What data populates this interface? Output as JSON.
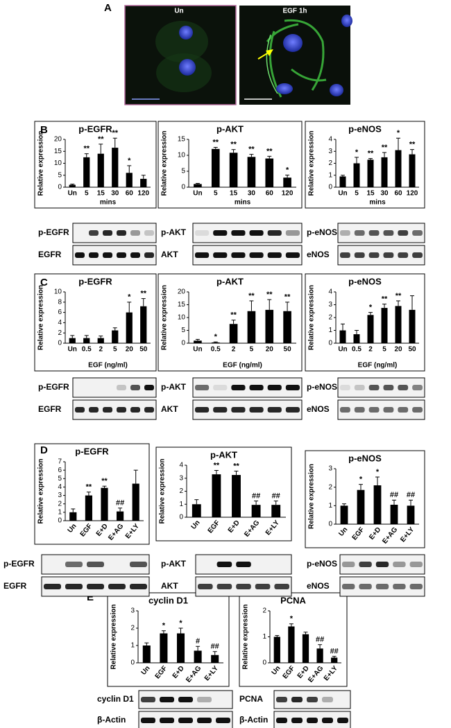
{
  "figure": {
    "panels": [
      "A",
      "B",
      "C",
      "D",
      "E"
    ],
    "image_labels": [
      "Un",
      "EGF 1h"
    ]
  },
  "chart_data": [
    {
      "type": "bar",
      "title": "p-EGFR",
      "categories": [
        "Un",
        "5",
        "15",
        "30",
        "60",
        "120"
      ],
      "values": [
        1,
        12.5,
        14,
        16.5,
        6,
        3.5
      ],
      "errors": [
        0.3,
        1.5,
        4,
        4,
        3,
        1.5
      ],
      "annotations": [
        null,
        "**",
        "**",
        "**",
        "*",
        null
      ],
      "ylim": [
        0,
        20
      ],
      "yticks": [
        0,
        5,
        10,
        15,
        20
      ],
      "ylabel": "Relative expression",
      "xlabel": "mins",
      "color": "#000000"
    },
    {
      "type": "bar",
      "title": "p-AKT",
      "categories": [
        "Un",
        "5",
        "15",
        "30",
        "60",
        "120"
      ],
      "values": [
        1,
        12,
        10.8,
        9.5,
        9,
        3
      ],
      "errors": [
        0.2,
        0.5,
        1,
        0.8,
        0.7,
        0.8
      ],
      "annotations": [
        null,
        "**",
        "**",
        "**",
        "**",
        "*"
      ],
      "ylim": [
        0,
        15
      ],
      "yticks": [
        0,
        5,
        10,
        15
      ],
      "ylabel": "Relative expression",
      "xlabel": "mins",
      "color": "#000000"
    },
    {
      "type": "bar",
      "title": "p-eNOS",
      "categories": [
        "Un",
        "5",
        "15",
        "30",
        "60",
        "120"
      ],
      "values": [
        0.9,
        2,
        2.3,
        2.5,
        3.1,
        2.75
      ],
      "errors": [
        0.1,
        0.5,
        0.1,
        0.4,
        1,
        0.4
      ],
      "annotations": [
        null,
        "*",
        "**",
        "**",
        "*",
        "**"
      ],
      "ylim": [
        0,
        4
      ],
      "yticks": [
        0,
        1,
        2,
        3,
        4
      ],
      "ylabel": "Relative expression",
      "xlabel": "mins",
      "color": "#000000"
    },
    {
      "type": "bar",
      "title": "p-EGFR",
      "categories": [
        "Un",
        "0.5",
        "2",
        "5",
        "20",
        "50"
      ],
      "values": [
        1,
        1,
        1,
        2.5,
        6,
        7.2
      ],
      "errors": [
        0.5,
        0.5,
        0.4,
        0.5,
        2,
        1.5
      ],
      "annotations": [
        null,
        null,
        null,
        null,
        "*",
        "**"
      ],
      "ylim": [
        0,
        10
      ],
      "yticks": [
        0,
        2,
        4,
        6,
        8,
        10
      ],
      "ylabel": "Relative expression",
      "xlabel": "EGF (ng/ml)",
      "color": "#000000"
    },
    {
      "type": "bar",
      "title": "p-AKT",
      "categories": [
        "Un",
        "0.5",
        "2",
        "5",
        "20",
        "50"
      ],
      "values": [
        1,
        0.3,
        7.5,
        12.5,
        13,
        12.5
      ],
      "errors": [
        0.5,
        0.2,
        1.5,
        4,
        4,
        3.5
      ],
      "annotations": [
        null,
        "*",
        "**",
        "**",
        "**",
        "**"
      ],
      "ylim": [
        0,
        20
      ],
      "yticks": [
        0,
        5,
        10,
        15,
        20
      ],
      "ylabel": "Relative expression",
      "xlabel": "EGF (ng/ml)",
      "color": "#000000"
    },
    {
      "type": "bar",
      "title": "p-eNOS",
      "categories": [
        "Un",
        "0.5",
        "2",
        "5",
        "20",
        "50"
      ],
      "values": [
        1,
        0.7,
        2.2,
        2.75,
        2.9,
        2.6
      ],
      "errors": [
        0.5,
        0.3,
        0.2,
        0.3,
        0.4,
        1.1
      ],
      "annotations": [
        null,
        null,
        "*",
        "**",
        "**",
        null
      ],
      "ylim": [
        0,
        4
      ],
      "yticks": [
        0,
        1,
        2,
        3,
        4
      ],
      "ylabel": "Relative expression",
      "xlabel": "EGF (ng/ml)",
      "color": "#000000"
    },
    {
      "type": "bar",
      "title": "p-EGFR",
      "categories": [
        "Un",
        "EGF",
        "E+D",
        "E+AG",
        "E+LY"
      ],
      "values": [
        1,
        3,
        3.9,
        1.1,
        4.4
      ],
      "errors": [
        0.4,
        0.4,
        0.2,
        0.4,
        1.6
      ],
      "annotations": [
        null,
        "**",
        "**",
        "##",
        null
      ],
      "ylim": [
        0,
        7
      ],
      "yticks": [
        0,
        1,
        2,
        3,
        4,
        5,
        6,
        7
      ],
      "ylabel": "Relative expression",
      "color": "#000000"
    },
    {
      "type": "bar",
      "title": "p-AKT",
      "categories": [
        "Un",
        "EGF",
        "E+D",
        "E+AG",
        "E+LY"
      ],
      "values": [
        1,
        3.3,
        3.25,
        0.95,
        0.95
      ],
      "errors": [
        0.35,
        0.3,
        0.3,
        0.3,
        0.3
      ],
      "annotations": [
        null,
        "**",
        "**",
        "##",
        "##"
      ],
      "ylim": [
        0,
        4
      ],
      "yticks": [
        0,
        1,
        2,
        3,
        4
      ],
      "ylabel": "Relative expression",
      "color": "#000000"
    },
    {
      "type": "bar",
      "title": "p-eNOS",
      "categories": [
        "Un",
        "EGF",
        "E+D",
        "E+AG",
        "E+LY"
      ],
      "values": [
        1,
        1.85,
        2.1,
        1.05,
        1
      ],
      "errors": [
        0.1,
        0.3,
        0.45,
        0.25,
        0.3
      ],
      "annotations": [
        null,
        "*",
        "*",
        "##",
        "##"
      ],
      "ylim": [
        0,
        3
      ],
      "yticks": [
        0,
        1,
        2,
        3
      ],
      "ylabel": "Relative expression",
      "color": "#000000"
    },
    {
      "type": "bar",
      "title": "cyclin D1",
      "categories": [
        "Un",
        "EGF",
        "E+D",
        "E+AG",
        "E+LY"
      ],
      "values": [
        1,
        1.7,
        1.7,
        0.7,
        0.45
      ],
      "errors": [
        0.15,
        0.15,
        0.3,
        0.25,
        0.2
      ],
      "annotations": [
        null,
        "*",
        "*",
        "#",
        "##"
      ],
      "ylim": [
        0,
        3
      ],
      "yticks": [
        0,
        1,
        2,
        3
      ],
      "ylabel": "Relative expression",
      "color": "#000000"
    },
    {
      "type": "bar",
      "title": "PCNA",
      "categories": [
        "Un",
        "EGF",
        "E+D",
        "E+AG",
        "E+LY"
      ],
      "values": [
        1,
        1.4,
        1.1,
        0.55,
        0.2
      ],
      "errors": [
        0.05,
        0.1,
        0.08,
        0.15,
        0.05
      ],
      "annotations": [
        null,
        "*",
        null,
        "##",
        "##"
      ],
      "ylim": [
        0,
        2
      ],
      "yticks": [
        0,
        1,
        2
      ],
      "ylabel": "Relative expression",
      "color": "#000000"
    }
  ],
  "blots": [
    {
      "rows": [
        "p-EGFR",
        "EGFR"
      ]
    },
    {
      "rows": [
        "p-AKT",
        "AKT"
      ]
    },
    {
      "rows": [
        "p-eNOS",
        "eNOS"
      ]
    },
    {
      "rows": [
        "p-EGFR",
        "EGFR"
      ]
    },
    {
      "rows": [
        "p-AKT",
        "AKT"
      ]
    },
    {
      "rows": [
        "p-eNOS",
        "eNOS"
      ]
    },
    {
      "rows": [
        "p-EGFR",
        "EGFR"
      ]
    },
    {
      "rows": [
        "p-AKT",
        "AKT"
      ]
    },
    {
      "rows": [
        "p-eNOS",
        "eNOS"
      ]
    },
    {
      "rows": [
        "cyclin D1",
        "β-Actin"
      ]
    },
    {
      "rows": [
        "PCNA",
        "β-Actin"
      ]
    }
  ]
}
